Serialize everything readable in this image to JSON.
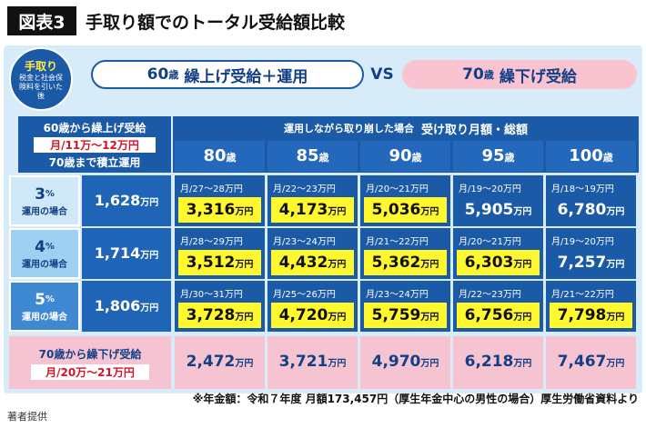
{
  "header": {
    "label": "図表3",
    "title": "手取り額でのトータル受給額比較"
  },
  "badge": {
    "title": "手取り",
    "note": "税金と社会保険料を引いた後"
  },
  "banner_left": {
    "age": "60",
    "unit": "歳",
    "text": "繰上げ受給＋運用"
  },
  "vs": "VS",
  "banner_right": {
    "age": "70",
    "unit": "歳",
    "text": "繰下げ受給"
  },
  "left_header": {
    "line1": "60歳から繰上げ受給",
    "line2": "月/11万～12万円",
    "line3": "70歳まで積立運用"
  },
  "column_header": {
    "note": "運用しながら取り崩した場合",
    "title": "受け取り月額・総額"
  },
  "columns": [
    {
      "age": "80",
      "unit": "歳"
    },
    {
      "age": "85",
      "unit": "歳"
    },
    {
      "age": "90",
      "unit": "歳"
    },
    {
      "age": "95",
      "unit": "歳"
    },
    {
      "age": "100",
      "unit": "歳"
    }
  ],
  "rows": [
    {
      "rate": "3",
      "rate_unit": "%",
      "rate_note": "運用の場合",
      "total": "1,628",
      "total_unit": "万円",
      "cells": [
        {
          "monthly": "月/27～28万円",
          "total": "3,316",
          "unit": "万円",
          "highlight": true
        },
        {
          "monthly": "月/22～23万円",
          "total": "4,173",
          "unit": "万円",
          "highlight": true
        },
        {
          "monthly": "月/20～21万円",
          "total": "5,036",
          "unit": "万円",
          "highlight": true
        },
        {
          "monthly": "月/19～20万円",
          "total": "5,905",
          "unit": "万円",
          "highlight": false
        },
        {
          "monthly": "月/18～19万円",
          "total": "6,780",
          "unit": "万円",
          "highlight": false
        }
      ]
    },
    {
      "rate": "4",
      "rate_unit": "%",
      "rate_note": "運用の場合",
      "total": "1,714",
      "total_unit": "万円",
      "cells": [
        {
          "monthly": "月/28～29万円",
          "total": "3,512",
          "unit": "万円",
          "highlight": true
        },
        {
          "monthly": "月/23～24万円",
          "total": "4,432",
          "unit": "万円",
          "highlight": true
        },
        {
          "monthly": "月/21～22万円",
          "total": "5,362",
          "unit": "万円",
          "highlight": true
        },
        {
          "monthly": "月/20～21万円",
          "total": "6,303",
          "unit": "万円",
          "highlight": true
        },
        {
          "monthly": "月/19～20万円",
          "total": "7,257",
          "unit": "万円",
          "highlight": false
        }
      ]
    },
    {
      "rate": "5",
      "rate_unit": "%",
      "rate_note": "運用の場合",
      "total": "1,806",
      "total_unit": "万円",
      "cells": [
        {
          "monthly": "月/30～31万円",
          "total": "3,728",
          "unit": "万円",
          "highlight": true
        },
        {
          "monthly": "月/25～26万円",
          "total": "4,720",
          "unit": "万円",
          "highlight": true
        },
        {
          "monthly": "月/23～24万円",
          "total": "5,759",
          "unit": "万円",
          "highlight": true
        },
        {
          "monthly": "月/22～23万円",
          "total": "6,756",
          "unit": "万円",
          "highlight": true
        },
        {
          "monthly": "月/21～22万円",
          "total": "7,798",
          "unit": "万円",
          "highlight": true
        }
      ]
    }
  ],
  "deferred": {
    "line1": "70歳から繰下げ受給",
    "line2": "月/20万～21万円",
    "cells": [
      {
        "total": "2,472",
        "unit": "万円"
      },
      {
        "total": "3,721",
        "unit": "万円"
      },
      {
        "total": "4,970",
        "unit": "万円"
      },
      {
        "total": "6,218",
        "unit": "万円"
      },
      {
        "total": "7,467",
        "unit": "万円"
      }
    ]
  },
  "footnote": "※年金額：令和７年度 月額173,457円（厚生年金中心の男性の場合）厚生労働省資料より",
  "credit": "著者提供"
}
